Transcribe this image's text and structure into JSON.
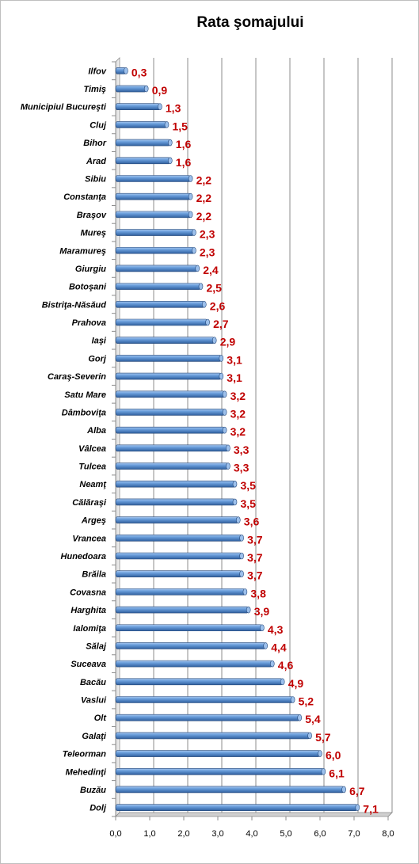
{
  "chart_data": {
    "type": "bar",
    "orientation": "horizontal",
    "title": "Rata şomajului",
    "xlabel": "",
    "ylabel": "",
    "xlim": [
      0,
      8
    ],
    "x_ticks": [
      "0,0",
      "1,0",
      "2,0",
      "3,0",
      "4,0",
      "5,0",
      "6,0",
      "7,0",
      "8,0"
    ],
    "grid": true,
    "legend": "none",
    "bar_color": "#4f86c6",
    "label_color": "#c00000",
    "categories": [
      "Ilfov",
      "Timiş",
      "Municipiul Bucureşti",
      "Cluj",
      "Bihor",
      "Arad",
      "Sibiu",
      "Constanţa",
      "Braşov",
      "Mureş",
      "Maramureş",
      "Giurgiu",
      "Botoşani",
      "Bistriţa-Năsăud",
      "Prahova",
      "Iaşi",
      "Gorj",
      "Caraş-Severin",
      "Satu Mare",
      "Dâmboviţa",
      "Alba",
      "Vâlcea",
      "Tulcea",
      "Neamţ",
      "Călăraşi",
      "Argeş",
      "Vrancea",
      "Hunedoara",
      "Brăila",
      "Covasna",
      "Harghita",
      "Ialomiţa",
      "Sălaj",
      "Suceava",
      "Bacău",
      "Vaslui",
      "Olt",
      "Galaţi",
      "Teleorman",
      "Mehedinţi",
      "Buzău",
      "Dolj"
    ],
    "values": [
      0.3,
      0.9,
      1.3,
      1.5,
      1.6,
      1.6,
      2.2,
      2.2,
      2.2,
      2.3,
      2.3,
      2.4,
      2.5,
      2.6,
      2.7,
      2.9,
      3.1,
      3.1,
      3.2,
      3.2,
      3.2,
      3.3,
      3.3,
      3.5,
      3.5,
      3.6,
      3.7,
      3.7,
      3.7,
      3.8,
      3.9,
      4.3,
      4.4,
      4.6,
      4.9,
      5.2,
      5.4,
      5.7,
      6.0,
      6.1,
      6.7,
      7.1
    ],
    "data_labels": [
      "0,3",
      "0,9",
      "1,3",
      "1,5",
      "1,6",
      "1,6",
      "2,2",
      "2,2",
      "2,2",
      "2,3",
      "2,3",
      "2,4",
      "2,5",
      "2,6",
      "2,7",
      "2,9",
      "3,1",
      "3,1",
      "3,2",
      "3,2",
      "3,2",
      "3,3",
      "3,3",
      "3,5",
      "3,5",
      "3,6",
      "3,7",
      "3,7",
      "3,7",
      "3,8",
      "3,9",
      "4,3",
      "4,4",
      "4,6",
      "4,9",
      "5,2",
      "5,4",
      "5,7",
      "6,0",
      "6,1",
      "6,7",
      "7,1"
    ]
  }
}
